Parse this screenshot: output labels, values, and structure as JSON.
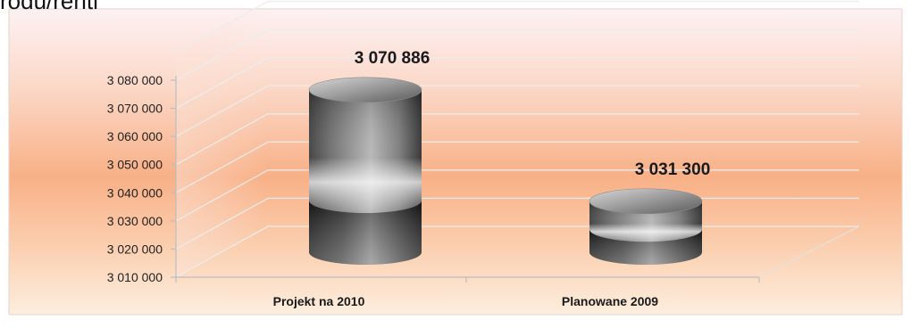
{
  "page": {
    "top_cut_text": "rodu/rentl"
  },
  "chart_data": {
    "type": "bar",
    "style": "3d-cylinder",
    "categories": [
      "Projekt na 2010",
      "Planowane 2009"
    ],
    "values": [
      3070886,
      3031300
    ],
    "data_labels": [
      "3 070 886",
      "3 031 300"
    ],
    "title": "",
    "xlabel": "",
    "ylabel": "",
    "ylim": [
      3010000,
      3080000
    ],
    "yticks": [
      3010000,
      3020000,
      3030000,
      3040000,
      3050000,
      3060000,
      3070000,
      3080000
    ],
    "ytick_labels": [
      "3 010 000",
      "3 020 000",
      "3 030 000",
      "3 040 000",
      "3 050 000",
      "3 060 000",
      "3 070 000",
      "3 080 000"
    ],
    "grid": true,
    "legend": "none",
    "colors": {
      "background_top": "#fdf0f0",
      "background_mid": "#f9b98a",
      "background_bottom": "#fbe6d2",
      "bar_dark": "#4a4a4a",
      "bar_light": "#ffffff",
      "gridline": "#e8e8e8"
    }
  }
}
